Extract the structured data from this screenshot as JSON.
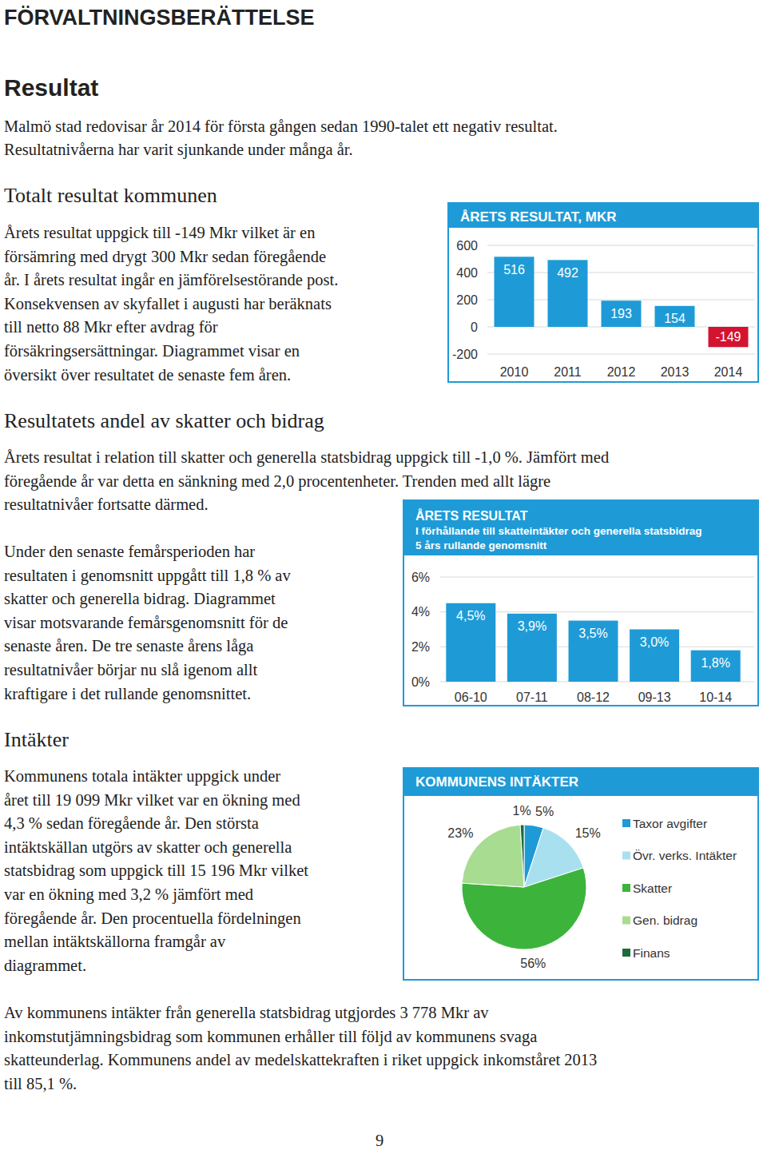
{
  "header": {
    "title": "FÖRVALTNINGSBERÄTTELSE",
    "section_title": "Resultat",
    "intro": [
      "Malmö stad redovisar år 2014 för första gången sedan 1990-talet ett negativ resultat.",
      "Resultatnivåerna har varit sjunkande under många år."
    ]
  },
  "sections": [
    {
      "heading": "Totalt resultat kommunen",
      "paragraphs": [
        [
          "Årets resultat uppgick till -149 Mkr vilket är en",
          "försämring med drygt 300 Mkr sedan föregående",
          "år. I årets resultat ingår en jämförelsestörande post.",
          "Konsekvensen av skyfallet i augusti har beräknats",
          "till netto 88 Mkr efter avdrag för",
          "försäkringsersättningar. Diagrammet visar en",
          "översikt över resultatet de senaste fem åren."
        ]
      ]
    },
    {
      "heading": "Resultatets andel av skatter och bidrag",
      "paragraphs": [
        [
          "Årets resultat i relation till skatter och generella statsbidrag uppgick till -1,0 %. Jämfört med",
          "föregående år var detta en sänkning med 2,0 procentenheter. Trenden med allt lägre",
          "resultatnivåer fortsatte därmed."
        ],
        [
          "Under den senaste femårsperioden har",
          "resultaten i genomsnitt uppgått till 1,8 % av",
          "skatter och generella bidrag. Diagrammet",
          "visar motsvarande femårsgenomsnitt för de",
          "senaste åren. De tre senaste årens låga",
          "resultatnivåer börjar nu slå igenom allt",
          "kraftigare i det rullande genomsnittet."
        ]
      ]
    },
    {
      "heading": "Intäkter",
      "paragraphs": [
        [
          "Kommunens totala intäkter uppgick under",
          "året till 19 099 Mkr vilket var en ökning med",
          "4,3 % sedan föregående år. Den största",
          "intäktskällan utgörs av skatter och generella",
          "statsbidrag som uppgick till 15 196 Mkr vilket",
          "var en ökning med 3,2 % jämfört med",
          "föregående år. Den procentuella fördelningen",
          "mellan intäktskällorna framgår av",
          "diagrammet."
        ],
        [
          "Av kommunens intäkter från generella statsbidrag utgjordes 3 778 Mkr av",
          "inkomstutjämningsbidrag som kommunen erhåller till följd av kommunens svaga",
          "skatteunderlag. Kommunens andel av medelskattekraften i riket uppgick inkomståret 2013",
          "till 85,1 %."
        ]
      ]
    }
  ],
  "page_number": "9",
  "chart_data": [
    {
      "type": "bar",
      "title": "ÅRETS RESULTAT, MKR",
      "categories": [
        "2010",
        "2011",
        "2012",
        "2013",
        "2014"
      ],
      "values": [
        516,
        492,
        193,
        154,
        -149
      ],
      "colors": [
        "#1e9bd7",
        "#1e9bd7",
        "#1e9bd7",
        "#1e9bd7",
        "#d3132f"
      ],
      "ylim": [
        -200,
        600
      ],
      "yticks": [
        -200,
        0,
        200,
        400,
        600
      ],
      "grid": true,
      "data_labels": true
    },
    {
      "type": "bar",
      "title": "ÅRETS RESULTAT",
      "subtitle": [
        "I förhållande till skatteintäkter och generella statsbidrag",
        "5 års rullande genomsnitt"
      ],
      "categories": [
        "06-10",
        "07-11",
        "08-12",
        "09-13",
        "10-14"
      ],
      "values": [
        4.5,
        3.9,
        3.5,
        3.0,
        1.8
      ],
      "value_labels": [
        "4,5%",
        "3,9%",
        "3,5%",
        "3,0%",
        "1,8%"
      ],
      "color": "#1e9bd7",
      "ylim": [
        0,
        6
      ],
      "yticks": [
        {
          "value": 0,
          "label": "0%"
        },
        {
          "value": 2,
          "label": "2%"
        },
        {
          "value": 4,
          "label": "4%"
        },
        {
          "value": 6,
          "label": "6%"
        }
      ],
      "grid": true,
      "data_labels": true
    },
    {
      "type": "pie",
      "title": "KOMMUNENS INTÄKTER",
      "categories": [
        "Taxor avgifter",
        "Övr. verks. Intäkter",
        "Skatter",
        "Gen. bidrag",
        "Finans"
      ],
      "values": [
        5,
        15,
        56,
        23,
        1
      ],
      "value_labels": [
        "5%",
        "15%",
        "56%",
        "23%",
        "1%"
      ],
      "colors": [
        "#1e9bd7",
        "#a9e0f0",
        "#3cb43c",
        "#a8dc90",
        "#1d6b3c"
      ],
      "legend": "right",
      "data_labels": true
    }
  ]
}
